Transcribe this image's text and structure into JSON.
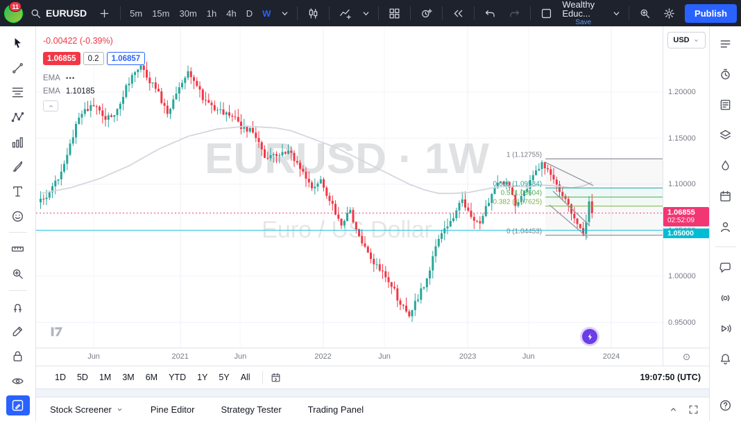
{
  "topbar": {
    "logo_badge": "11",
    "symbol": "EURUSD",
    "timeframes": [
      "5m",
      "15m",
      "30m",
      "1h",
      "4h",
      "D",
      "W"
    ],
    "active_timeframe": "W",
    "layout_title": "Wealthy Educ...",
    "save_label": "Save",
    "publish_label": "Publish"
  },
  "left_toolbar": {
    "tools": [
      {
        "name": "cursor-tool",
        "icon": "cursor-icon"
      },
      {
        "name": "trend-line-tool",
        "icon": "trend-line-icon"
      },
      {
        "name": "fib-retracement-tool",
        "icon": "fib-retracement-icon"
      },
      {
        "name": "xabcd-pattern-tool",
        "icon": "xabcd-pattern-icon"
      },
      {
        "name": "forecast-tool",
        "icon": "forecast-icon"
      },
      {
        "name": "brush-tool",
        "icon": "brush-icon"
      },
      {
        "name": "text-tool",
        "icon": "text-icon"
      },
      {
        "name": "emoji-tool",
        "icon": "emoji-icon"
      },
      {
        "divider": true
      },
      {
        "name": "measure-tool",
        "icon": "measure-icon"
      },
      {
        "name": "zoom-tool",
        "icon": "zoom-in-icon"
      },
      {
        "divider": true
      },
      {
        "name": "magnet-tool",
        "icon": "magnet-icon"
      },
      {
        "name": "edit-tool",
        "icon": "edit-icon"
      },
      {
        "name": "lock-all-tool",
        "icon": "lock-icon"
      },
      {
        "name": "hide-all-tool",
        "icon": "eye-icon"
      },
      {
        "name": "drawings-panel-toggle",
        "icon": "draw-panel-icon",
        "active": true
      }
    ]
  },
  "right_sidebar": {
    "items": [
      {
        "name": "watchlist-button",
        "icon": "watchlist-icon"
      },
      {
        "name": "alerts-button",
        "icon": "alert-clock-icon"
      },
      {
        "name": "news-button",
        "icon": "news-icon"
      },
      {
        "name": "object-tree-button",
        "icon": "layers-icon"
      },
      {
        "name": "hotlists-button",
        "icon": "hotlist-flame-icon"
      },
      {
        "name": "calendar-button",
        "icon": "calendar-icon"
      },
      {
        "name": "ideas-button",
        "icon": "ideas-icon"
      },
      {
        "divider": true
      },
      {
        "name": "chat-button",
        "icon": "chat-icon"
      },
      {
        "name": "community-button",
        "icon": "community-icon"
      },
      {
        "name": "streams-button",
        "icon": "stream-icon"
      },
      {
        "name": "notifications-button",
        "icon": "bell-icon"
      }
    ],
    "help": {
      "name": "help-button",
      "icon": "help-icon"
    }
  },
  "legend": {
    "change": "-0.00422 (-0.39%)",
    "bid": "1.06855",
    "spread": "0.2",
    "ask": "1.06857",
    "ema1_label": "EMA",
    "ema1_value": "•••",
    "ema2_label": "EMA",
    "ema2_value": "1.10185"
  },
  "price_axis": {
    "currency": "USD",
    "labels": [
      {
        "text": "1.20000",
        "price": 1.2
      },
      {
        "text": "1.15000",
        "price": 1.15
      },
      {
        "text": "1.10000",
        "price": 1.1
      },
      {
        "text": "1.05000",
        "price": 1.05
      },
      {
        "text": "1.00000",
        "price": 1.0
      },
      {
        "text": "0.95000",
        "price": 0.95
      }
    ],
    "current_badge": {
      "price": "1.06855",
      "countdown": "02:52:09",
      "color": "#f23674",
      "value": 1.06855
    },
    "level_badge": {
      "price": "1.05000",
      "color": "#00bcd4",
      "value": 1.05
    }
  },
  "time_axis": {
    "labels": [
      {
        "text": "Jun",
        "f": 0.092
      },
      {
        "text": "2021",
        "f": 0.23,
        "year": true
      },
      {
        "text": "Jun",
        "f": 0.326
      },
      {
        "text": "2022",
        "f": 0.458,
        "year": true
      },
      {
        "text": "Jun",
        "f": 0.556
      },
      {
        "text": "2023",
        "f": 0.689,
        "year": true
      },
      {
        "text": "Jun",
        "f": 0.786
      },
      {
        "text": "2024",
        "f": 0.918,
        "year": true
      }
    ]
  },
  "range_toolbar": {
    "ranges": [
      "1D",
      "5D",
      "1M",
      "3M",
      "6M",
      "YTD",
      "1Y",
      "5Y",
      "All"
    ],
    "clock": "19:07:50 (UTC)"
  },
  "bottom_panel": {
    "items": [
      "Stock Screener",
      "Pine Editor",
      "Strategy Tester",
      "Trading Panel"
    ]
  },
  "chart_data": {
    "type": "candlestick",
    "symbol": "EURUSD",
    "interval": "1W",
    "title": "Euro / US Dollar",
    "watermark": {
      "line1": "EURUSD · 1W",
      "line2": "Euro / US Dollar"
    },
    "y_axis": {
      "ticks": [
        1.2,
        1.15,
        1.1,
        1.05,
        1.0,
        0.95
      ],
      "visible_range": [
        0.92,
        1.27
      ]
    },
    "up_color": "#26a69a",
    "down_color": "#f23645",
    "candle_count": 188,
    "wiggle": 0.0035,
    "range_ext": 0.009,
    "last_close": 1.06855,
    "anchors": [
      [
        0,
        1.082
      ],
      [
        4,
        1.095
      ],
      [
        8,
        1.122
      ],
      [
        12,
        1.165
      ],
      [
        14,
        1.178
      ],
      [
        18,
        1.186
      ],
      [
        22,
        1.168
      ],
      [
        26,
        1.182
      ],
      [
        30,
        1.212
      ],
      [
        34,
        1.228
      ],
      [
        36,
        1.218
      ],
      [
        40,
        1.198
      ],
      [
        43,
        1.176
      ],
      [
        46,
        1.198
      ],
      [
        50,
        1.221
      ],
      [
        53,
        1.205
      ],
      [
        56,
        1.188
      ],
      [
        60,
        1.182
      ],
      [
        64,
        1.176
      ],
      [
        68,
        1.163
      ],
      [
        72,
        1.158
      ],
      [
        76,
        1.128
      ],
      [
        80,
        1.132
      ],
      [
        84,
        1.136
      ],
      [
        88,
        1.118
      ],
      [
        92,
        1.098
      ],
      [
        95,
        1.105
      ],
      [
        98,
        1.083
      ],
      [
        102,
        1.052
      ],
      [
        105,
        1.072
      ],
      [
        108,
        1.042
      ],
      [
        112,
        1.018
      ],
      [
        116,
        1.002
      ],
      [
        119,
        0.992
      ],
      [
        122,
        0.968
      ],
      [
        125,
        0.958
      ],
      [
        128,
        0.978
      ],
      [
        131,
        0.998
      ],
      [
        134,
        1.032
      ],
      [
        137,
        1.052
      ],
      [
        140,
        1.066
      ],
      [
        143,
        1.082
      ],
      [
        146,
        1.062
      ],
      [
        149,
        1.056
      ],
      [
        152,
        1.082
      ],
      [
        155,
        1.098
      ],
      [
        158,
        1.102
      ],
      [
        161,
        1.078
      ],
      [
        164,
        1.092
      ],
      [
        167,
        1.108
      ],
      [
        170,
        1.122
      ],
      [
        172,
        1.118
      ],
      [
        175,
        1.098
      ],
      [
        178,
        1.082
      ],
      [
        181,
        1.062
      ],
      [
        184,
        1.048
      ],
      [
        185,
        1.062
      ],
      [
        186,
        1.082
      ],
      [
        187,
        1.06855
      ]
    ],
    "ema": {
      "label_value": "1.10185",
      "color": "#d4d6de",
      "path": [
        [
          0,
          1.09
        ],
        [
          10,
          1.096
        ],
        [
          20,
          1.106
        ],
        [
          30,
          1.12
        ],
        [
          40,
          1.138
        ],
        [
          50,
          1.152
        ],
        [
          60,
          1.16
        ],
        [
          70,
          1.163
        ],
        [
          80,
          1.161
        ],
        [
          85,
          1.158
        ],
        [
          90,
          1.152
        ],
        [
          95,
          1.146
        ],
        [
          100,
          1.14
        ],
        [
          105,
          1.132
        ],
        [
          110,
          1.124
        ],
        [
          115,
          1.116
        ],
        [
          120,
          1.108
        ],
        [
          125,
          1.1
        ],
        [
          130,
          1.094
        ],
        [
          135,
          1.09
        ],
        [
          140,
          1.09
        ],
        [
          145,
          1.091
        ],
        [
          150,
          1.094
        ],
        [
          155,
          1.097
        ],
        [
          160,
          1.098
        ],
        [
          165,
          1.097
        ],
        [
          170,
          1.099
        ],
        [
          175,
          1.098
        ],
        [
          180,
          1.096
        ],
        [
          184,
          1.098
        ],
        [
          187,
          1.102
        ]
      ]
    },
    "fib_retracement": {
      "x_start_f": 0.813,
      "band_colors": [
        "rgba(120,123,134,0.05)",
        "rgba(38,166,154,0.08)",
        "rgba(76,175,80,0.07)",
        "rgba(120,123,134,0.05)"
      ],
      "levels": [
        {
          "ratio": "1",
          "price": 1.12755,
          "label": "1 (1.12755)",
          "color": "#787b86"
        },
        {
          "ratio": "0.618",
          "price": 1.09584,
          "label": "0.618 (1.09584)",
          "color": "#26a69a"
        },
        {
          "ratio": "0.5",
          "price": 1.08604,
          "label": "0.5 (1.08604)",
          "color": "#4caf50"
        },
        {
          "ratio": "0.382",
          "price": 1.07625,
          "label": "0.382 (1.07625)",
          "color": "#7cb342"
        },
        {
          "ratio": "0",
          "price": 1.04453,
          "label": "0 (1.04453)",
          "color": "#787b86"
        }
      ]
    },
    "trend_lines": {
      "color": "#9598a1",
      "segments": [
        [
          733,
          196,
          803,
          230
        ],
        [
          745,
          238,
          798,
          288
        ],
        [
          740,
          258,
          795,
          305
        ]
      ]
    },
    "horizontal_line": {
      "price": 1.05,
      "color": "#00bcd4",
      "label": "1.05000"
    },
    "last_price_line": {
      "price": 1.06855,
      "color": "#f23674",
      "style": "dotted"
    }
  }
}
